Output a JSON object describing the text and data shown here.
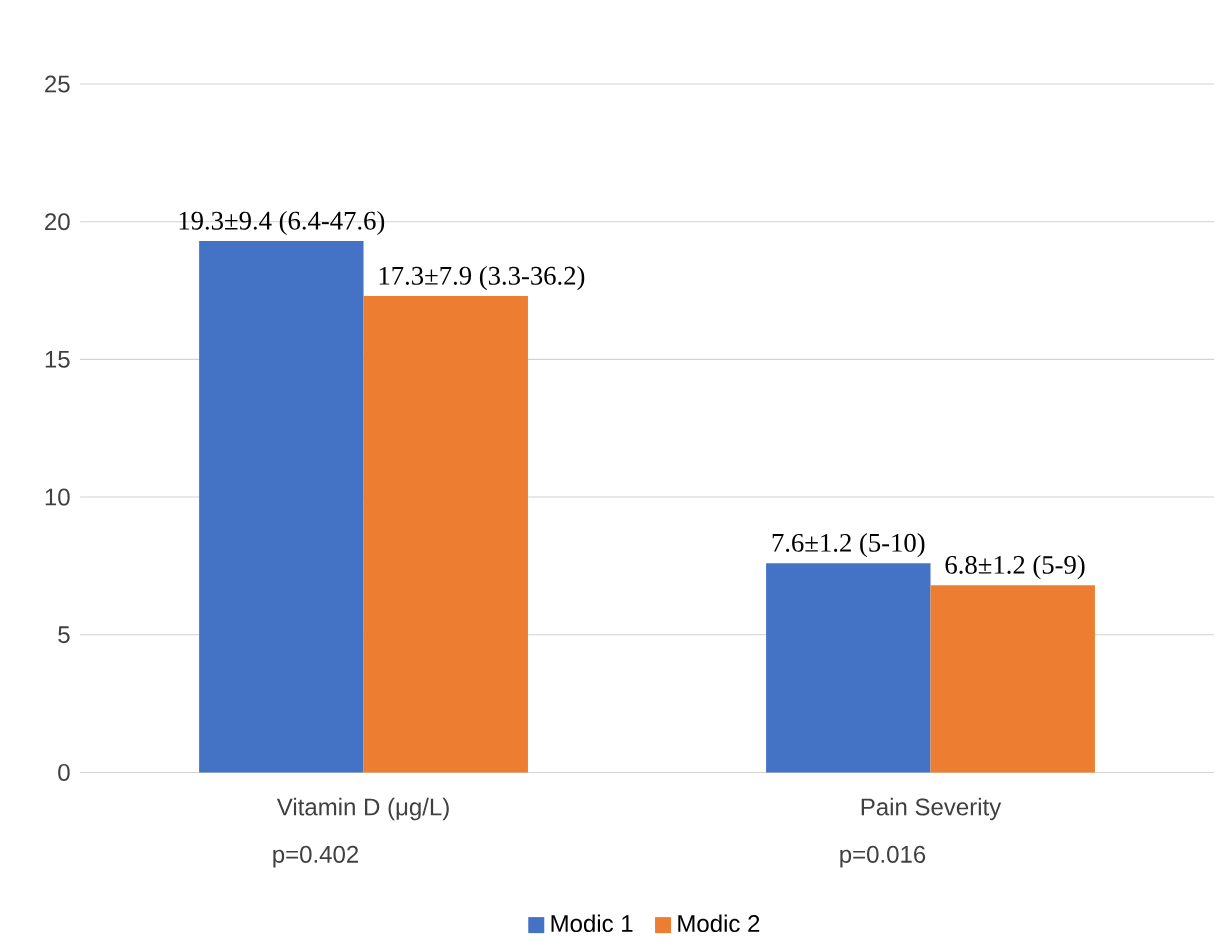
{
  "chart_data": {
    "type": "bar",
    "categories": [
      "Vitamin D (μg/L)",
      "Pain Severity"
    ],
    "series": [
      {
        "name": "Modic 1",
        "color": "#4472c4",
        "values": [
          19.3,
          7.6
        ],
        "value_labels": [
          "19.3±9.4 (6.4-47.6)",
          "7.6±1.2 (5-10)"
        ]
      },
      {
        "name": "Modic 2",
        "color": "#ed7d31",
        "values": [
          17.3,
          6.8
        ],
        "value_labels": [
          "17.3±7.9 (3.3-36.2)",
          "6.8±1.2 (5-9)"
        ]
      }
    ],
    "annotations": [
      "p=0.402",
      "p=0.016"
    ],
    "ylim": [
      0,
      25
    ],
    "yticks": [
      0,
      5,
      10,
      15,
      20,
      25
    ],
    "grid": "y",
    "legend": "bottom"
  }
}
